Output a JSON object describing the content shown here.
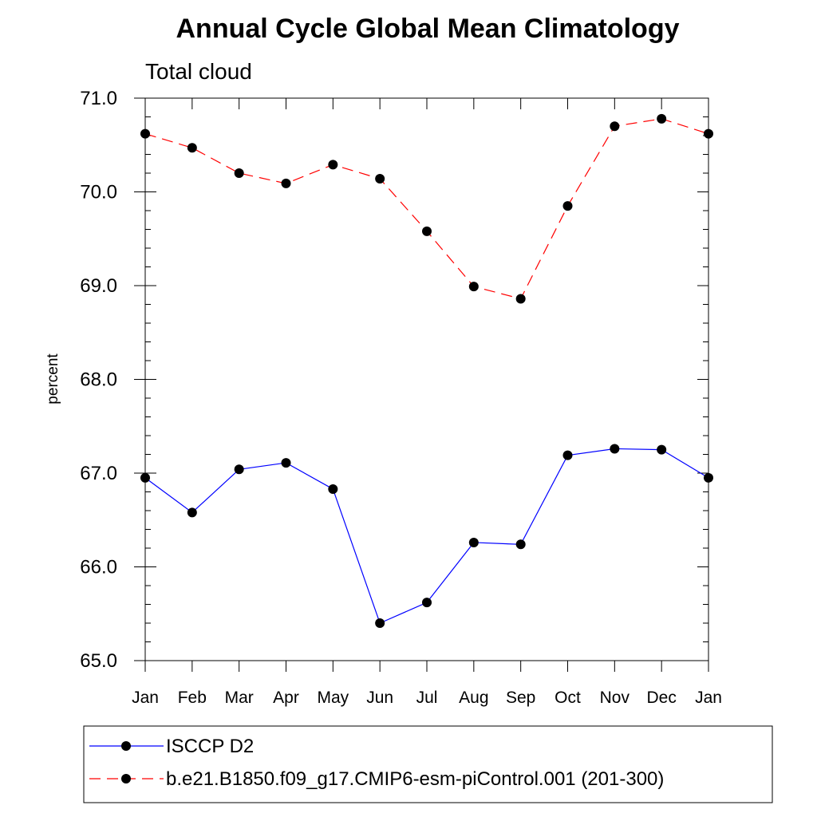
{
  "chart_data": {
    "type": "line",
    "title": "Annual Cycle Global Mean Climatology",
    "subtitle": "Total cloud",
    "xlabel": "",
    "ylabel": "percent",
    "categories": [
      "Jan",
      "Feb",
      "Mar",
      "Apr",
      "May",
      "Jun",
      "Jul",
      "Aug",
      "Sep",
      "Oct",
      "Nov",
      "Dec",
      "Jan"
    ],
    "ylim": [
      65.0,
      71.0
    ],
    "yticks": [
      "65.0",
      "66.0",
      "67.0",
      "68.0",
      "69.0",
      "70.0",
      "71.0"
    ],
    "grid": false,
    "legend_position": "bottom",
    "series": [
      {
        "name": "ISCCP D2",
        "color": "#0000ff",
        "dash": "solid",
        "values": [
          66.95,
          66.58,
          67.04,
          67.11,
          66.83,
          65.4,
          65.62,
          66.26,
          66.24,
          67.19,
          67.26,
          67.25,
          66.95
        ]
      },
      {
        "name": "b.e21.B1850.f09_g17.CMIP6-esm-piControl.001 (201-300)",
        "color": "#ff0000",
        "dash": "dashed",
        "values": [
          70.62,
          70.47,
          70.2,
          70.09,
          70.29,
          70.14,
          69.58,
          68.99,
          68.86,
          69.85,
          70.7,
          70.78,
          70.62
        ]
      }
    ]
  }
}
